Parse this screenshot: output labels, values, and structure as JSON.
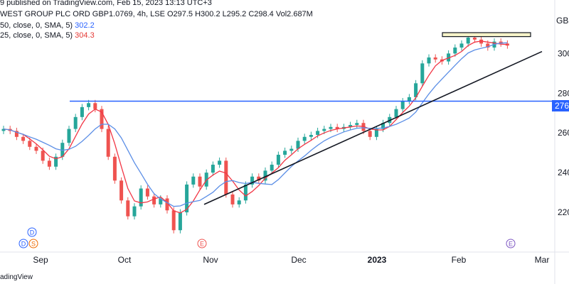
{
  "header": {
    "published": "9 published on TradingView.com, Feb 15, 2023 13:13 UTC+3",
    "symbol_line": "WEST GROUP PLC ORD GBP1.0769, 4h, LSE  O297.5  H300.2  L295.2  C298.4  Vol2.687M",
    "sma50_label": "50, close, 0, SMA, 5)",
    "sma50_value": "302.2",
    "sma25_label": "25, close, 0, SMA, 5)",
    "sma25_value": "304.3"
  },
  "currency_label": "GBX",
  "horizontal_level_tag": "276",
  "footer": "adingView",
  "colors": {
    "up": "#26a69a",
    "down": "#ef5350",
    "sma_fast": "#f23645",
    "sma_slow": "#5b8ee6",
    "hline": "#2962ff",
    "trend": "#131722",
    "box_fill": "#f6f3c8"
  },
  "chart_data": {
    "type": "candlestick",
    "ylim": [
      200,
      318
    ],
    "y_ticks": [
      220,
      240,
      260,
      280,
      300
    ],
    "y_tick_labels": [
      "220",
      "240",
      "260",
      "280",
      "300"
    ],
    "x_labels": [
      "Sep",
      "Oct",
      "Nov",
      "Dec",
      "2023",
      "Feb",
      "Mar"
    ],
    "horizontal_level": 276,
    "trendline": {
      "from": [
        "Oct 27",
        224
      ],
      "to": [
        "Feb 28",
        301
      ]
    },
    "resistance_box": {
      "from": [
        "Jan 25",
        308.5
      ],
      "to": [
        "Feb 26",
        310.5
      ]
    },
    "last_close": 298.4,
    "markers": [
      "D",
      "D",
      "S",
      "E",
      "E"
    ],
    "prices": [
      262,
      261,
      258,
      256,
      253,
      251,
      246,
      243,
      248,
      255,
      262,
      268,
      273,
      275,
      272,
      262,
      248,
      236,
      226,
      218,
      223,
      232,
      228,
      224,
      227,
      221,
      211,
      220,
      234,
      238,
      233,
      240,
      244,
      246,
      229,
      224,
      226,
      234,
      238,
      236,
      241,
      244,
      249,
      251,
      252,
      256,
      258,
      259,
      261,
      262,
      263,
      262,
      263,
      264,
      265,
      261,
      258,
      262,
      265,
      268,
      272,
      276,
      278,
      285,
      295,
      298,
      297,
      296,
      300,
      303,
      305,
      308,
      307,
      305,
      303,
      306,
      305,
      304
    ]
  }
}
